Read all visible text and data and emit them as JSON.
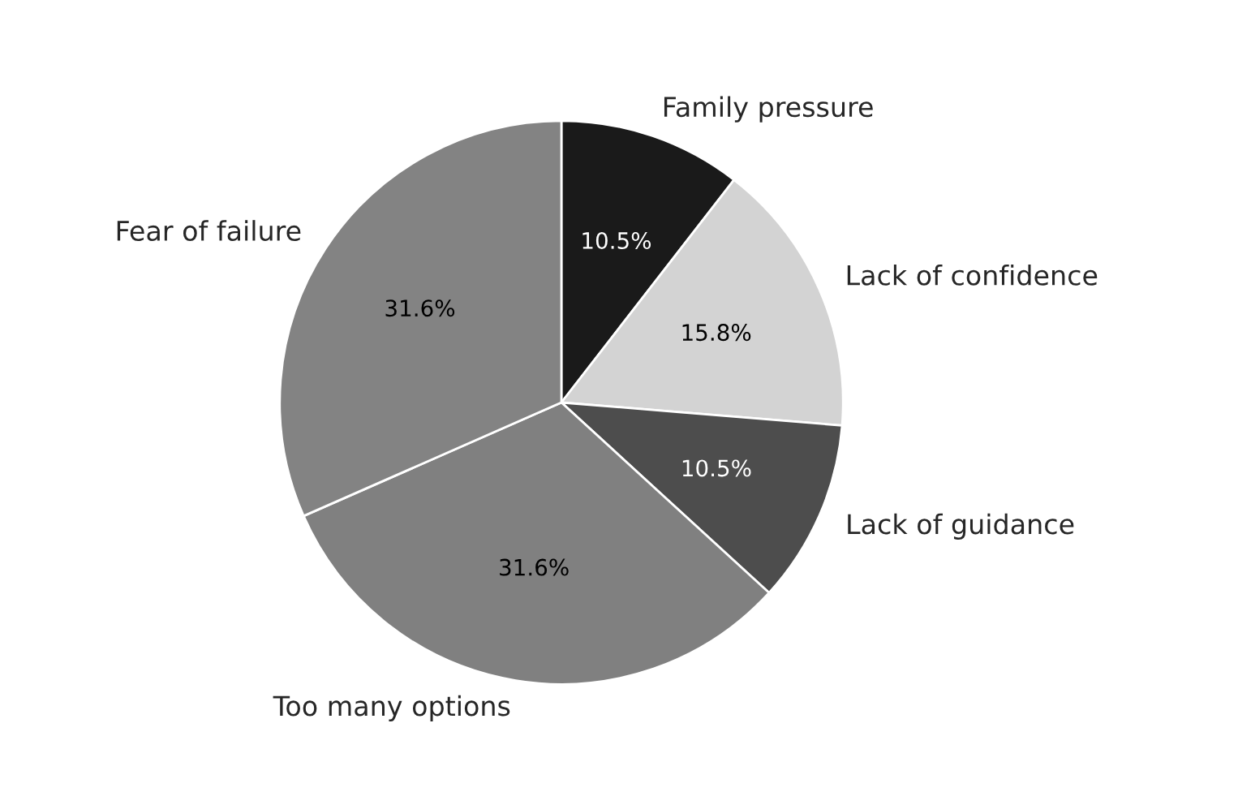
{
  "chart_data": {
    "type": "pie",
    "categories": [
      "Family pressure",
      "Lack of confidence",
      "Lack of guidance",
      "Too many options",
      "Fear of failure"
    ],
    "values": [
      10.5,
      15.8,
      10.5,
      31.6,
      31.6
    ],
    "colors": [
      "#1a1a1a",
      "#d3d3d3",
      "#4d4d4d",
      "#808080",
      "#838383"
    ],
    "value_labels": [
      "10.5%",
      "15.8%",
      "10.5%",
      "31.6%",
      "31.6%"
    ]
  }
}
